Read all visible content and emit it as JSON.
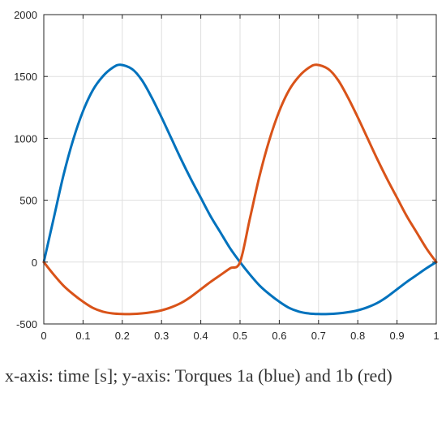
{
  "chart_data": {
    "type": "line",
    "title": "",
    "xlabel": "",
    "ylabel": "",
    "xlim": [
      0,
      1
    ],
    "ylim": [
      -500,
      2000
    ],
    "xticks": [
      0,
      0.1,
      0.2,
      0.3,
      0.4,
      0.5,
      0.6,
      0.7,
      0.8,
      0.9,
      1
    ],
    "xtick_labels": [
      "0",
      "0.1",
      "0.2",
      "0.3",
      "0.4",
      "0.5",
      "0.6",
      "0.7",
      "0.8",
      "0.9",
      "1"
    ],
    "yticks": [
      -500,
      0,
      500,
      1000,
      1500,
      2000
    ],
    "ytick_labels": [
      "-500",
      "0",
      "500",
      "1000",
      "1500",
      "2000"
    ],
    "grid": true,
    "legend": "none",
    "series": [
      {
        "color": "#0072BD",
        "x": [
          0,
          0.025,
          0.05,
          0.075,
          0.1,
          0.125,
          0.15,
          0.175,
          0.195,
          0.225,
          0.25,
          0.275,
          0.3,
          0.325,
          0.35,
          0.375,
          0.4,
          0.425,
          0.45,
          0.475,
          0.5,
          0.525,
          0.55,
          0.575,
          0.6,
          0.625,
          0.65,
          0.675,
          0.7,
          0.725,
          0.75,
          0.775,
          0.8,
          0.825,
          0.85,
          0.875,
          0.9,
          0.925,
          0.95,
          0.975,
          1
        ],
        "y": [
          0,
          350,
          700,
          990,
          1220,
          1390,
          1500,
          1570,
          1595,
          1560,
          1470,
          1330,
          1170,
          1000,
          830,
          670,
          520,
          370,
          240,
          110,
          0,
          -100,
          -190,
          -260,
          -320,
          -370,
          -400,
          -415,
          -420,
          -420,
          -415,
          -405,
          -390,
          -365,
          -330,
          -280,
          -220,
          -160,
          -105,
          -50,
          0
        ]
      },
      {
        "color": "#D95319",
        "x": [
          0,
          0.025,
          0.05,
          0.075,
          0.1,
          0.125,
          0.15,
          0.175,
          0.2,
          0.225,
          0.25,
          0.275,
          0.3,
          0.325,
          0.35,
          0.375,
          0.4,
          0.425,
          0.45,
          0.475,
          0.5,
          0.525,
          0.55,
          0.575,
          0.6,
          0.625,
          0.65,
          0.675,
          0.695,
          0.725,
          0.75,
          0.775,
          0.8,
          0.825,
          0.85,
          0.875,
          0.9,
          0.925,
          0.95,
          0.975,
          1
        ],
        "y": [
          0,
          -100,
          -190,
          -260,
          -320,
          -370,
          -400,
          -415,
          -420,
          -420,
          -415,
          -405,
          -390,
          -365,
          -330,
          -280,
          -220,
          -160,
          -105,
          -50,
          0,
          350,
          700,
          990,
          1220,
          1390,
          1500,
          1570,
          1595,
          1560,
          1470,
          1330,
          1170,
          1000,
          830,
          670,
          520,
          370,
          240,
          110,
          0
        ]
      }
    ]
  },
  "caption": "x-axis: time [s]; y-axis: Torques 1a (blue) and 1b (red)"
}
